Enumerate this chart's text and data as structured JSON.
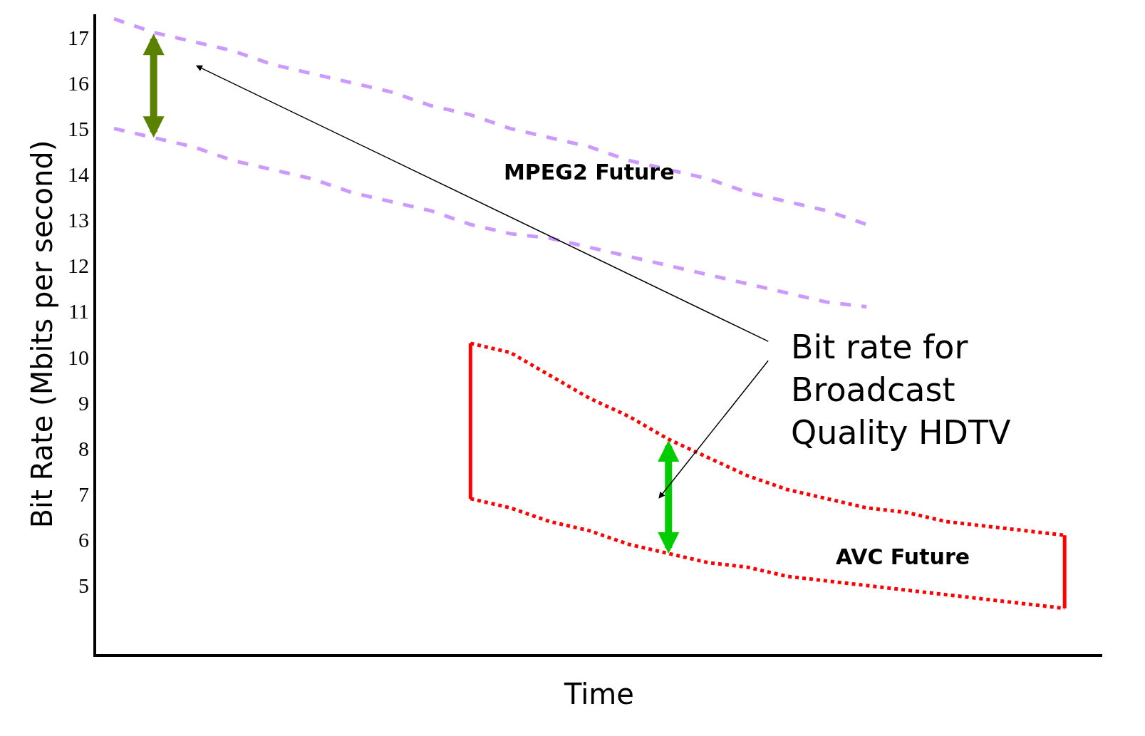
{
  "chart_data": {
    "type": "line",
    "ylabel": "Bit Rate (Mbits per second)",
    "xlabel": "Time",
    "categories": [
      null,
      null,
      null,
      null,
      null,
      null,
      null,
      null,
      null,
      null,
      null,
      null,
      null,
      null,
      null,
      null,
      null,
      null,
      null,
      null,
      null,
      null,
      null,
      null,
      null
    ],
    "ylim": [
      3.5,
      17.5
    ],
    "yticks": [
      5,
      6,
      7,
      8,
      9,
      10,
      11,
      12,
      13,
      14,
      15,
      16,
      17
    ],
    "tick_labels": "y",
    "series": [
      {
        "color": "#cc99ff",
        "line_style": "dashed",
        "values": [
          17.4,
          17.1,
          16.9,
          16.7,
          16.4,
          16.2,
          16.0,
          15.8,
          15.5,
          15.3,
          15.0,
          14.8,
          14.6,
          14.3,
          14.1,
          13.9,
          13.6,
          13.4,
          13.2,
          12.9,
          null,
          null,
          null,
          null,
          null
        ]
      },
      {
        "color": "#cc99ff",
        "line_style": "dashed",
        "values": [
          15.0,
          14.8,
          14.6,
          14.3,
          14.1,
          13.9,
          13.6,
          13.4,
          13.2,
          12.9,
          12.7,
          12.6,
          12.4,
          12.2,
          12.0,
          11.8,
          11.6,
          11.4,
          11.2,
          11.1,
          null,
          null,
          null,
          null,
          null
        ]
      },
      {
        "color": "#ff0000",
        "line_style": "dotted",
        "values": [
          null,
          null,
          null,
          null,
          null,
          null,
          null,
          null,
          null,
          10.3,
          10.1,
          9.6,
          9.1,
          8.7,
          8.2,
          7.8,
          7.4,
          7.1,
          6.9,
          6.7,
          6.6,
          6.4,
          6.3,
          6.2,
          6.1
        ]
      },
      {
        "color": "#ff0000",
        "line_style": "dotted",
        "values": [
          null,
          null,
          null,
          null,
          null,
          null,
          null,
          null,
          null,
          6.9,
          6.7,
          6.4,
          6.2,
          5.9,
          5.7,
          5.5,
          5.4,
          5.2,
          5.1,
          5.0,
          4.9,
          4.8,
          4.7,
          4.6,
          4.5
        ],
        "errors": [
          null,
          null,
          null,
          null,
          null,
          null,
          null,
          null,
          null,
          [
            6.9,
            10.3
          ],
          null,
          null,
          null,
          null,
          null,
          null,
          null,
          null,
          null,
          null,
          null,
          null,
          null,
          null,
          [
            4.5,
            6.1
          ]
        ]
      }
    ],
    "annotations": [
      "MPEG2 Future",
      "AVC Future",
      "Bit rate for Broadcast Quality HDTV"
    ]
  }
}
